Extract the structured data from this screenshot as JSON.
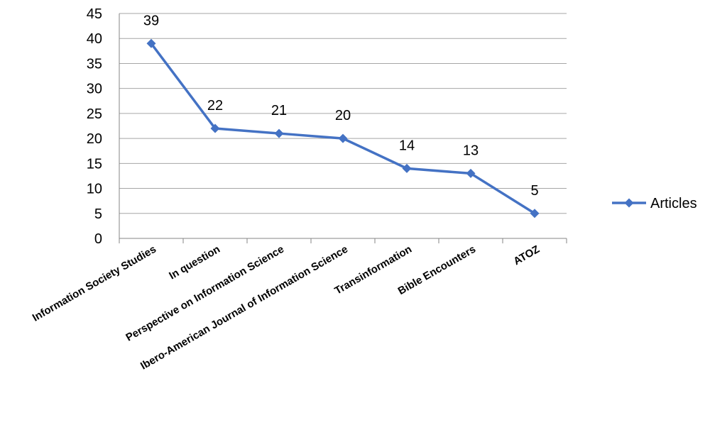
{
  "chart_data": {
    "type": "line",
    "categories": [
      "Information Society Studies",
      "In question",
      "Perspective on Information Science",
      "Ibero-American Journal of Information Science",
      "Transinformation",
      "Bible Encounters",
      "ATOZ"
    ],
    "series": [
      {
        "name": "Articles",
        "values": [
          39,
          22,
          21,
          20,
          14,
          13,
          5
        ],
        "color": "#4472C4",
        "marker": "diamond"
      }
    ],
    "data_labels": [
      "39",
      "22",
      "21",
      "20",
      "14",
      "13",
      "5"
    ],
    "ylim": [
      0,
      45
    ],
    "yticks": [
      0,
      5,
      10,
      15,
      20,
      25,
      30,
      35,
      40,
      45
    ],
    "grid": "horizontal",
    "legend_position": "right"
  }
}
